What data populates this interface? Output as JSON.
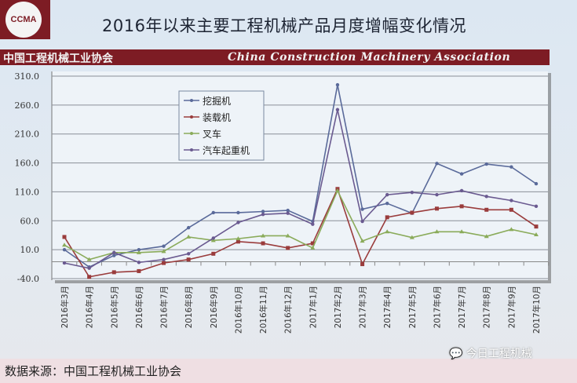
{
  "header": {
    "logo_text": "CCMA",
    "title": "2016年以来主要工程机械产品月度增幅变化情况",
    "band_cn": "中国工程机械工业协会",
    "band_en": "China Construction Machinery Association"
  },
  "footer": {
    "source": "数据来源：中国工程机械工业协会",
    "watermark": "今日工程机械",
    "watermark_icon": "wechat-icon"
  },
  "chart_data": {
    "type": "line",
    "title": "",
    "xlabel": "",
    "ylabel": "",
    "ylim": [
      -40,
      310
    ],
    "yticks": [
      "310.0",
      "260.0",
      "210.0",
      "160.0",
      "110.0",
      "60.0",
      "10.0",
      "-40.0"
    ],
    "grid": true,
    "legend_position": "top-center",
    "categories": [
      "2016年3月",
      "2016年4月",
      "2016年5月",
      "2016年6月",
      "2016年7月",
      "2016年8月",
      "2016年9月",
      "2016年10月",
      "2016年11月",
      "2016年12月",
      "2017年1月",
      "2017年2月",
      "2017年3月",
      "2017年4月",
      "2017年5月",
      "2017年6月",
      "2017年7月",
      "2017年8月",
      "2017年9月",
      "2017年10月"
    ],
    "series": [
      {
        "name": "挖掘机",
        "color": "#5a6a9a",
        "marker": "circle",
        "values": [
          10,
          -20,
          0,
          10,
          16,
          48,
          74,
          74,
          76,
          78,
          59,
          295,
          80,
          90,
          73,
          159,
          141,
          158,
          153,
          124
        ]
      },
      {
        "name": "装载机",
        "color": "#9a3c3c",
        "marker": "square",
        "values": [
          32,
          -37,
          -29,
          -27,
          -13,
          -7,
          3,
          24,
          21,
          13,
          21,
          115,
          -15,
          66,
          74,
          81,
          85,
          79,
          79,
          50
        ]
      },
      {
        "name": "叉车",
        "color": "#8aab5a",
        "marker": "triangle",
        "values": [
          18,
          -7,
          5,
          5,
          7,
          32,
          26,
          29,
          34,
          34,
          13,
          112,
          25,
          41,
          31,
          41,
          41,
          33,
          45,
          36
        ]
      },
      {
        "name": "汽车起重机",
        "color": "#6a5a90",
        "marker": "circle",
        "values": [
          -13,
          -22,
          5,
          -12,
          -7,
          3,
          30,
          57,
          71,
          73,
          54,
          252,
          59,
          105,
          109,
          105,
          112,
          102,
          95,
          85
        ]
      }
    ]
  }
}
